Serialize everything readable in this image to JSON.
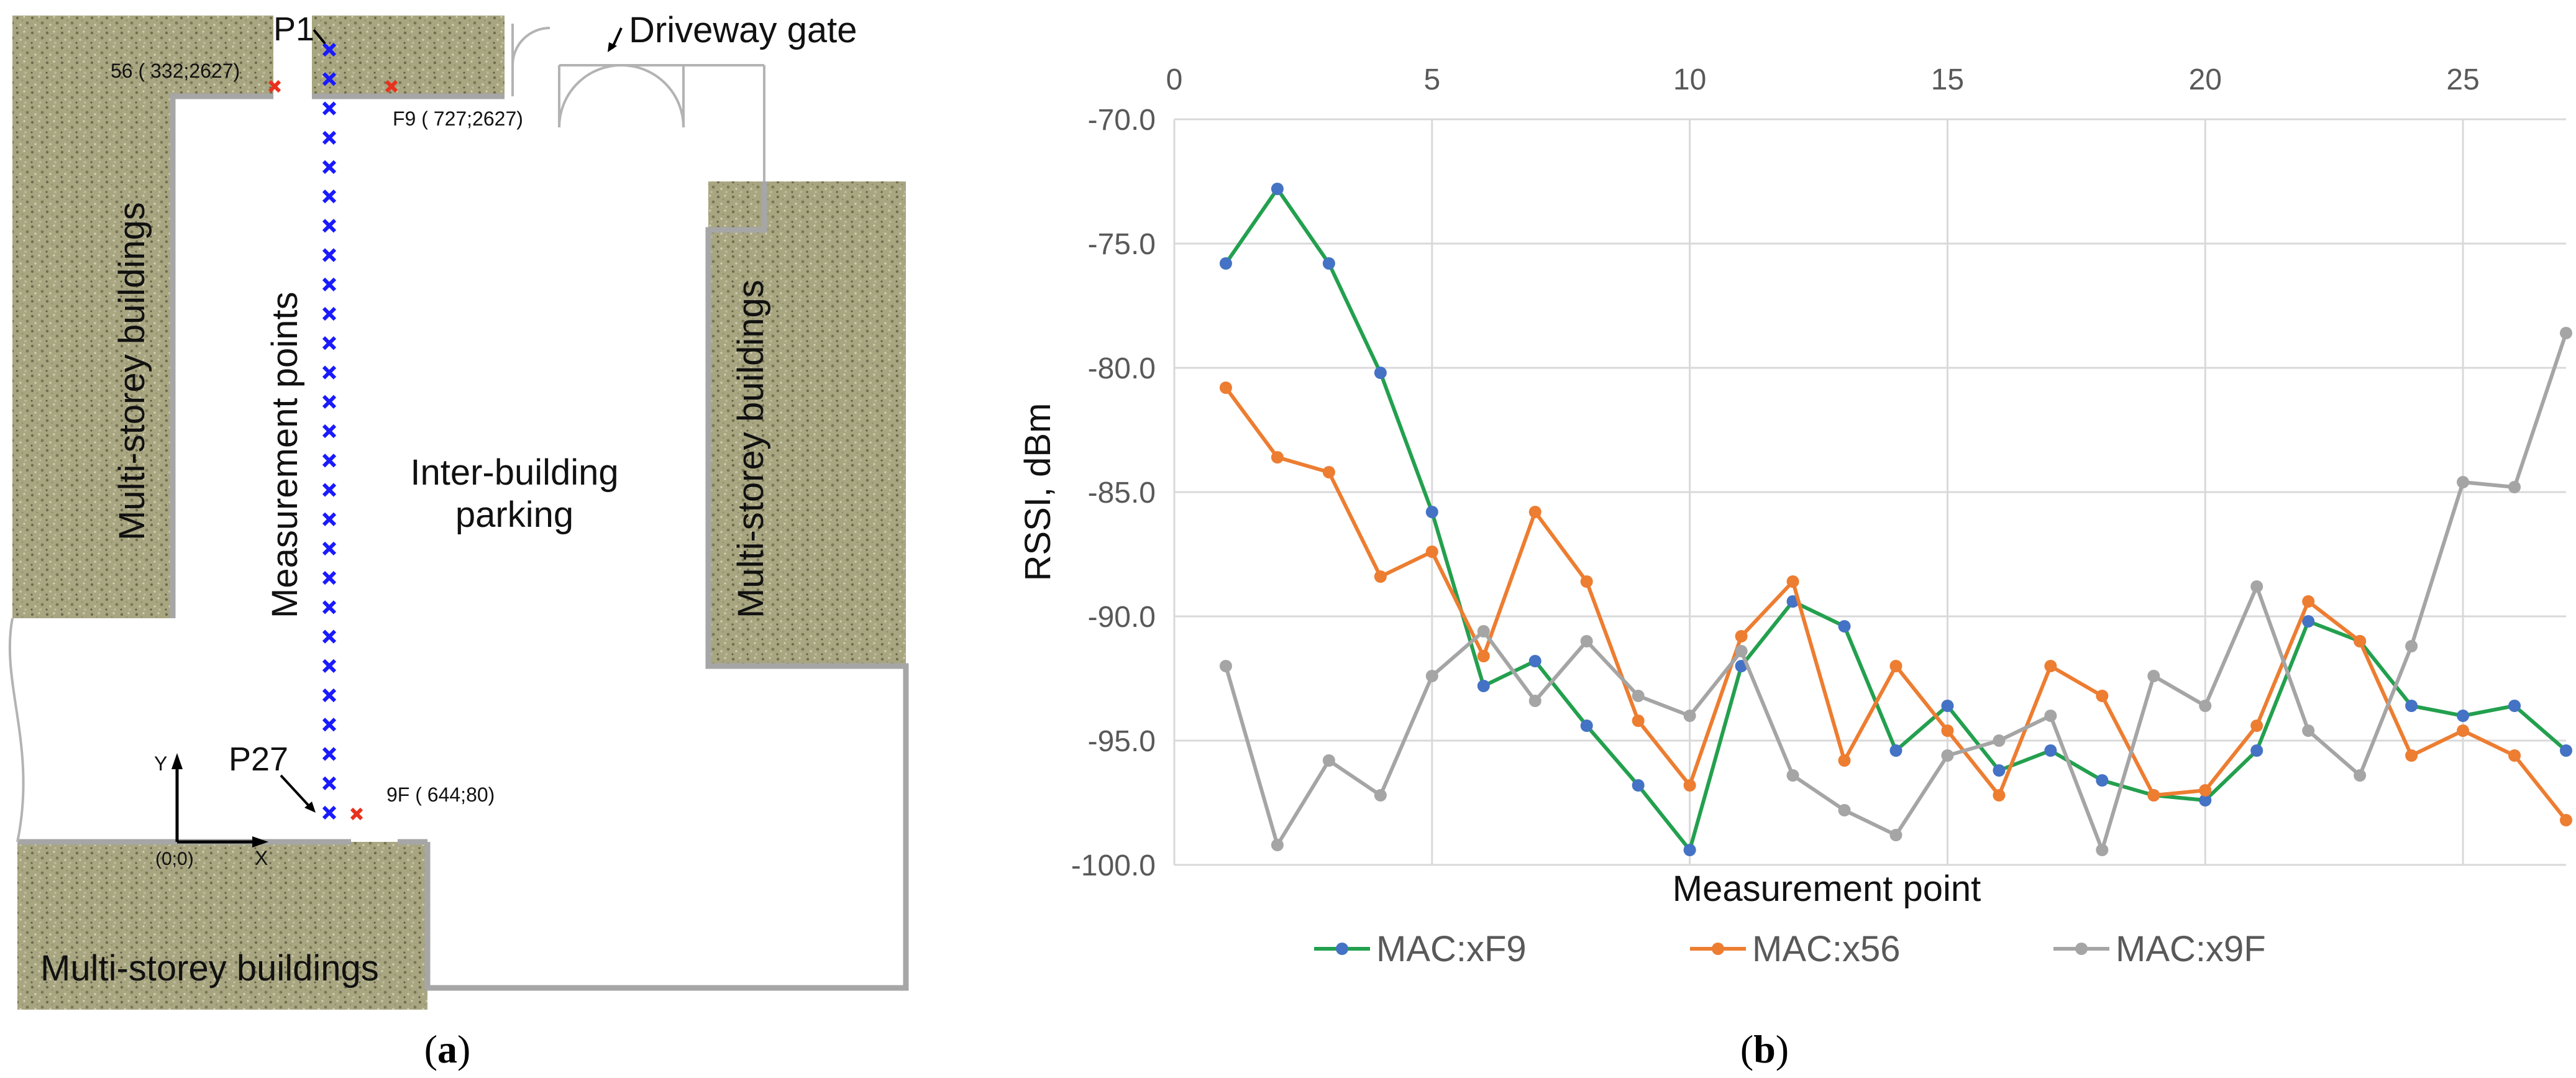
{
  "panel_a": {
    "caption": "(a)",
    "caption_letter": "a",
    "labels": {
      "point_first": "P1",
      "point_last": "P27",
      "gate": "Driveway gate",
      "building_left": "Multi-storey buildings",
      "building_right": "Multi-storey buildings",
      "building_bottom": "Multi-storey buildings",
      "measurement_points": "Measurement points",
      "parking_line1": "Inter-building",
      "parking_line2": "parking",
      "ap_56": "56 ( 332;2627)",
      "ap_f9": "F9 ( 727;2627)",
      "ap_9f": "9F ( 644;80)",
      "axis_y": "Y",
      "axis_x": "X",
      "origin": "(0;0)"
    },
    "measurement_point_count": 27,
    "colors": {
      "measurement_marker": "#1a1aff",
      "access_point_marker": "#e8321e",
      "building_fill": "#a8a581",
      "wall": "#a6a6a6"
    }
  },
  "panel_b": {
    "caption": "(b)",
    "caption_letter": "b"
  },
  "chart_data": {
    "type": "line",
    "title": "",
    "xlabel": "Measurement point",
    "ylabel": "RSSI, dBm",
    "xlim": [
      0,
      27
    ],
    "ylim": [
      -100,
      -70
    ],
    "x_ticks": [
      0,
      5,
      10,
      15,
      20,
      25
    ],
    "y_ticks": [
      -70.0,
      -75.0,
      -80.0,
      -85.0,
      -90.0,
      -95.0,
      -100.0
    ],
    "x_axis_position": "top",
    "grid": true,
    "legend_position": "bottom",
    "x": [
      1,
      2,
      3,
      4,
      5,
      6,
      7,
      8,
      9,
      10,
      11,
      12,
      13,
      14,
      15,
      16,
      17,
      18,
      19,
      20,
      21,
      22,
      23,
      24,
      25,
      26,
      27
    ],
    "series": [
      {
        "name": "MAC:xF9",
        "line_color": "#23a04e",
        "marker_color": "#4472c4",
        "values": [
          -75.8,
          -72.8,
          -75.8,
          -80.2,
          -85.8,
          -92.8,
          -91.8,
          -94.4,
          -96.8,
          -99.4,
          -92.0,
          -89.4,
          -90.4,
          -95.4,
          -93.6,
          -96.2,
          -95.4,
          -96.6,
          -97.2,
          -97.4,
          -95.4,
          -90.2,
          -91.0,
          -93.6,
          -94.0,
          -93.6,
          -95.4
        ]
      },
      {
        "name": "MAC:x56",
        "line_color": "#ed7d31",
        "marker_color": "#ed7d31",
        "values": [
          -80.8,
          -83.6,
          -84.2,
          -88.4,
          -87.4,
          -91.6,
          -85.8,
          -88.6,
          -94.2,
          -96.8,
          -90.8,
          -88.6,
          -95.8,
          -92.0,
          -94.6,
          -97.2,
          -92.0,
          -93.2,
          -97.2,
          -97.0,
          -94.4,
          -89.4,
          -91.0,
          -95.6,
          -94.6,
          -95.6,
          -98.2
        ]
      },
      {
        "name": "MAC:x9F",
        "line_color": "#a5a5a5",
        "marker_color": "#a5a5a5",
        "values": [
          -92.0,
          -99.2,
          -95.8,
          -97.2,
          -92.4,
          -90.6,
          -93.4,
          -91.0,
          -93.2,
          -94.0,
          -91.4,
          -96.4,
          -97.8,
          -98.8,
          -95.6,
          -95.0,
          -94.0,
          -99.4,
          -92.4,
          -93.6,
          -88.8,
          -94.6,
          -96.4,
          -91.2,
          -84.6,
          -84.8,
          -78.6
        ]
      }
    ]
  }
}
